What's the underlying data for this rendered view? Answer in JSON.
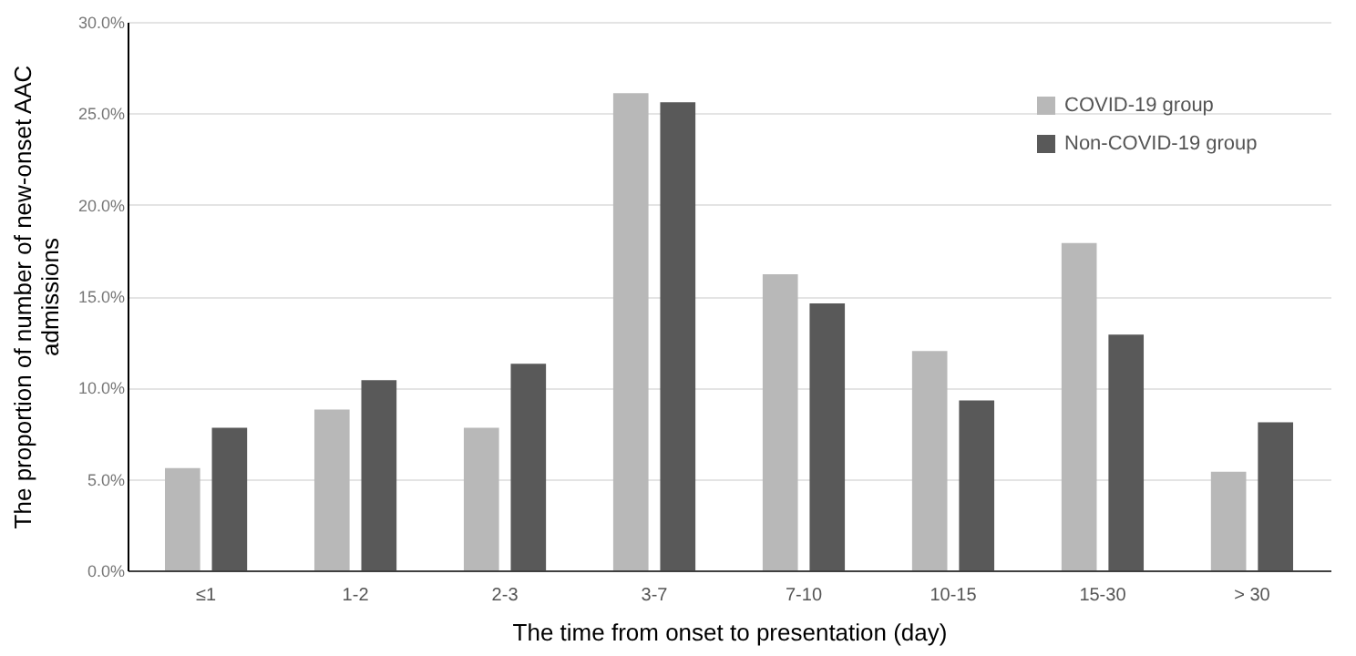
{
  "chart_data": {
    "type": "bar",
    "xlabel": "The time from onset to presentation (day)",
    "ylabel": "The proportion of number of new-onset AAC admissions",
    "categories": [
      "≤1",
      "1-2",
      "2-3",
      "3-7",
      "7-10",
      "10-15",
      "15-30",
      "> 30"
    ],
    "series": [
      {
        "name": "COVID-19 group",
        "color": "#b8b8b8",
        "values": [
          5.6,
          8.8,
          7.8,
          26.1,
          16.2,
          12.0,
          17.9,
          5.4
        ]
      },
      {
        "name": "Non-COVID-19 group",
        "color": "#595959",
        "values": [
          7.8,
          10.4,
          11.3,
          25.6,
          14.6,
          9.3,
          12.9,
          8.1
        ]
      }
    ],
    "ylim": [
      0,
      30
    ],
    "yticks": [
      {
        "value": 0,
        "label": "0.0%"
      },
      {
        "value": 5,
        "label": "5.0%"
      },
      {
        "value": 10,
        "label": "10.0%"
      },
      {
        "value": 15,
        "label": "15.0%"
      },
      {
        "value": 20,
        "label": "20.0%"
      },
      {
        "value": 25,
        "label": "25.0%"
      },
      {
        "value": 30,
        "label": "30.0%"
      }
    ],
    "grid": "y",
    "legend": "top right"
  }
}
